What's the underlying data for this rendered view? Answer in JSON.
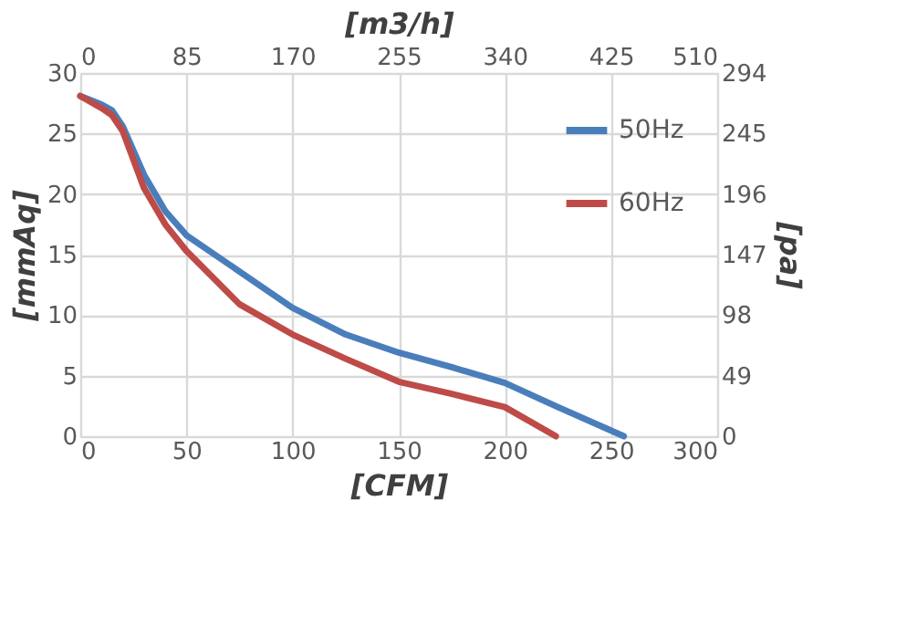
{
  "chart_data": {
    "type": "line",
    "xlabel": "[CFM]",
    "ylabel": "[mmAq]",
    "x2label": "[m3/h]",
    "y2label": "[pa]",
    "xlim": [
      0,
      300
    ],
    "xticks": [
      0,
      50,
      100,
      150,
      200,
      250,
      300
    ],
    "ylim": [
      0,
      30
    ],
    "yticks": [
      0,
      5,
      10,
      15,
      20,
      25,
      30
    ],
    "x2lim": [
      0,
      510
    ],
    "x2ticks": [
      0,
      85,
      170,
      255,
      340,
      425,
      510
    ],
    "y2lim": [
      0,
      294
    ],
    "y2ticks": [
      0,
      49,
      98,
      147,
      196,
      245,
      294
    ],
    "grid": true,
    "legend": "top right",
    "marker": "none",
    "line_style": "solid",
    "series": [
      {
        "name": "50Hz",
        "color": "#4a7ebb",
        "x": [
          0,
          10,
          15,
          20,
          30,
          40,
          50,
          75,
          100,
          125,
          150,
          175,
          200,
          225,
          256
        ],
        "values": [
          28.1,
          27.4,
          26.9,
          25.6,
          21.6,
          18.6,
          16.6,
          13.6,
          10.6,
          8.4,
          6.9,
          5.7,
          4.4,
          2.4,
          0
        ]
      },
      {
        "name": "60Hz",
        "color": "#be4b48",
        "x": [
          0,
          10,
          15,
          20,
          30,
          40,
          50,
          75,
          100,
          125,
          150,
          175,
          200,
          224
        ],
        "values": [
          28.1,
          27.1,
          26.5,
          25.2,
          20.5,
          17.5,
          15.3,
          10.9,
          8.4,
          6.4,
          4.5,
          3.5,
          2.4,
          0
        ]
      }
    ]
  }
}
